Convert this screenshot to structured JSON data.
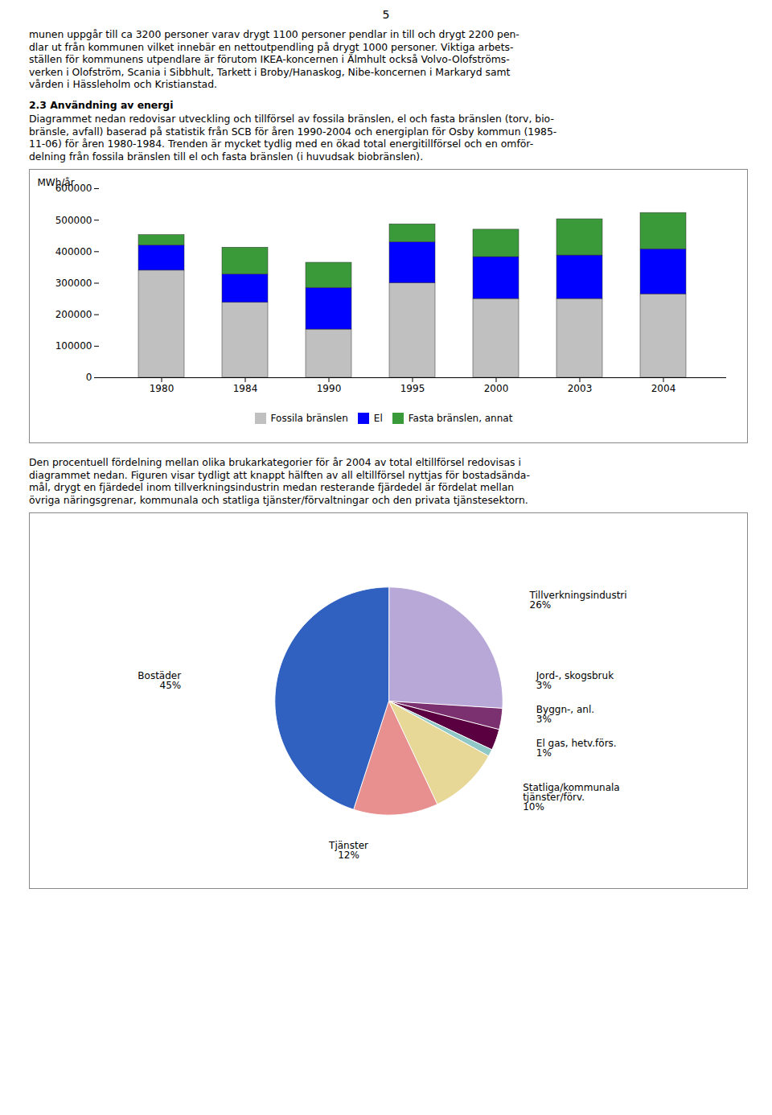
{
  "page_number": "5",
  "para1": [
    "munen uppgår till ca 3200 personer varav drygt 1100 personer pendlar in till och drygt 2200 pen-",
    "dlar ut från kommunen vilket innebär en nettoutpendling på drygt 1000 personer. Viktiga arbets-",
    "ställen för kommunens utpendlare är förutom IKEA-koncernen i Älmhult också Volvo-Olofströms-",
    "verken i Olofström, Scania i Sibbhult, Tarkett i Broby/Hanaskog, Nibe-koncernen i Markaryd samt",
    "vården i Hässleholm och Kristianstad."
  ],
  "heading": "2.3 Användning av energi",
  "para2": [
    "Diagrammet nedan redovisar utveckling och tillförsel av fossila bränslen, el och fasta bränslen (torv, bio-",
    "bränsle, avfall) baserad på statistik från SCB för åren 1990-2004 och energiplan för Osby kommun (1985-",
    "11-06) för åren 1980-1984. Trenden är mycket tydlig med en ökad total energitillförsel och en omför-",
    "delning från fossila bränslen till el och fasta bränslen (i huvudsak biobränslen)."
  ],
  "para3": [
    "Den procentuell fördelning mellan olika brukarkategorier för år 2004 av total eltillförsel redovisas i",
    "diagrammet nedan. Figuren visar tydligt att knappt hälften av all eltillförsel nyttjas för bostadsända-",
    "mål, drygt en fjärdedel inom tillverkningsindustrin medan resterande fjärdedel är fördelat mellan",
    "övriga näringsgrenar, kommunala och statliga tjänster/förvaltningar och den privata tjänstesektorn."
  ],
  "chart_data": [
    {
      "type": "bar",
      "stacked": true,
      "categories": [
        "1980",
        "1984",
        "1990",
        "1995",
        "2000",
        "2003",
        "2004"
      ],
      "series": [
        {
          "name": "Fossila bränslen",
          "color": "#C0C0C0",
          "values": [
            340000,
            238000,
            153000,
            300000,
            250000,
            250000,
            265000
          ]
        },
        {
          "name": "El",
          "color": "#0000FF",
          "values": [
            80000,
            90000,
            132000,
            130000,
            133000,
            138000,
            143000
          ]
        },
        {
          "name": "Fasta bränslen, annat",
          "color": "#3A9A3A",
          "values": [
            33000,
            85000,
            80000,
            57000,
            87000,
            115000,
            115000
          ]
        }
      ],
      "ylabel": "MWh/år",
      "ylim": [
        0,
        600000
      ],
      "yticks": [
        0,
        100000,
        200000,
        300000,
        400000,
        500000,
        600000
      ],
      "grid": false,
      "legend": "bottom"
    },
    {
      "type": "pie",
      "categories": [
        "Tillverkningsindustri",
        "Jord-, skogsbruk",
        "Byggn-, anl.",
        "El gas, hetv.förs.",
        "Statliga/kommunala\ntjänster/förv.",
        "Tjänster",
        "Bostäder"
      ],
      "values": [
        26,
        3,
        3,
        1,
        10,
        12,
        45
      ],
      "value_labels": [
        "26%",
        "3%",
        "3%",
        "1%",
        "10%",
        "12%",
        "45%"
      ],
      "colors": [
        "#B8A8D8",
        "#7B3070",
        "#5A0040",
        "#90C8C8",
        "#E8D898",
        "#E89090",
        "#3060C0"
      ],
      "data_labels": true
    }
  ]
}
